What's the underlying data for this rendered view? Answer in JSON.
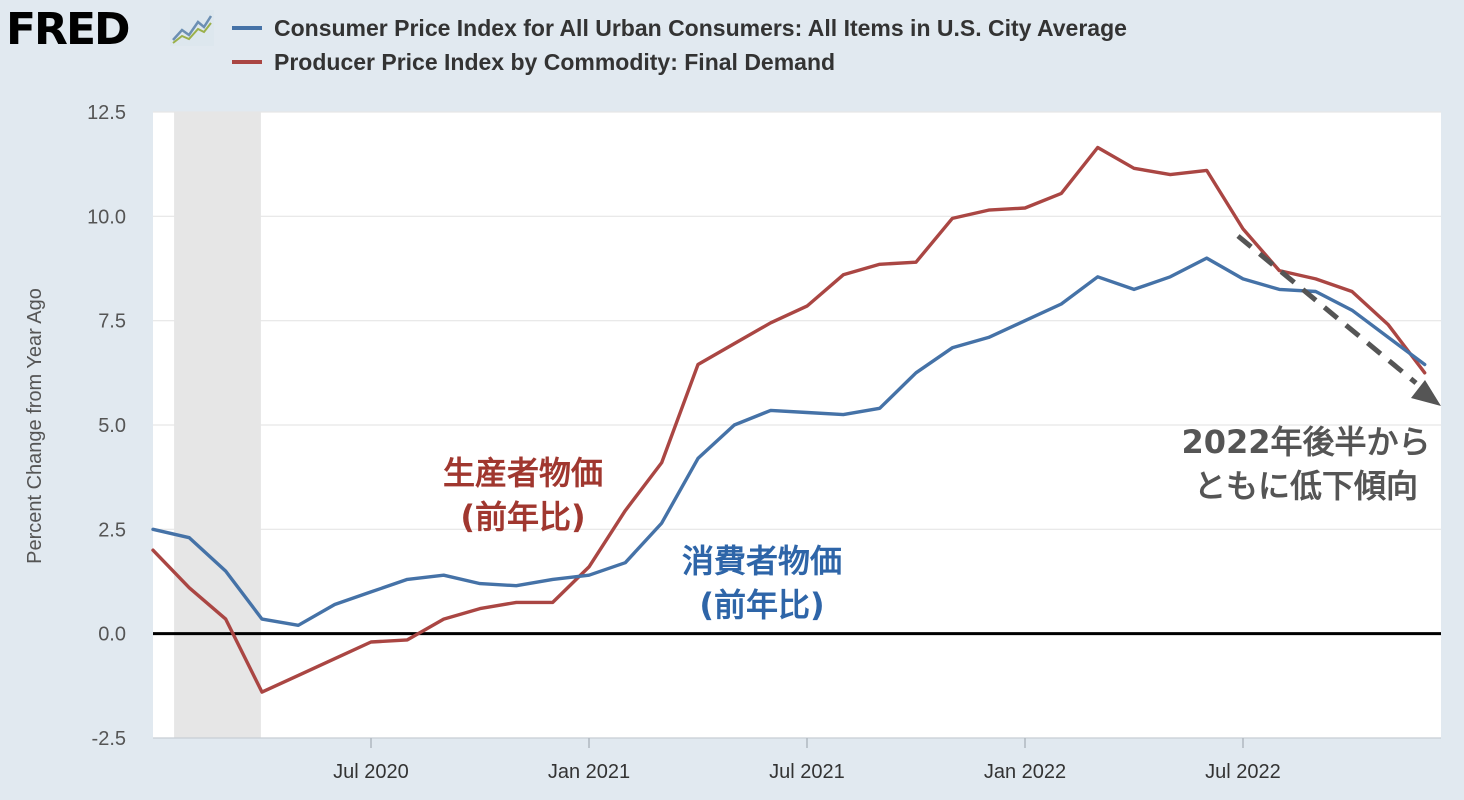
{
  "header": {
    "logo_text": "FRED",
    "logo_icon": "line-chart-icon"
  },
  "chart_data": {
    "type": "line",
    "title": "",
    "xlabel": "",
    "ylabel": "Percent Change from Year Ago",
    "ylim": [
      -2.5,
      12.5
    ],
    "yticks": [
      "12.5",
      "10.0",
      "7.5",
      "5.0",
      "2.5",
      "0.0",
      "-2.5"
    ],
    "xticks": [
      "Jul 2020",
      "Jan 2021",
      "Jul 2021",
      "Jan 2022",
      "Jul 2022"
    ],
    "x": [
      "2020-01",
      "2020-02",
      "2020-03",
      "2020-04",
      "2020-05",
      "2020-06",
      "2020-07",
      "2020-08",
      "2020-09",
      "2020-10",
      "2020-11",
      "2020-12",
      "2021-01",
      "2021-02",
      "2021-03",
      "2021-04",
      "2021-05",
      "2021-06",
      "2021-07",
      "2021-08",
      "2021-09",
      "2021-10",
      "2021-11",
      "2021-12",
      "2022-01",
      "2022-02",
      "2022-03",
      "2022-04",
      "2022-05",
      "2022-06",
      "2022-07",
      "2022-08",
      "2022-09",
      "2022-10",
      "2022-11",
      "2022-12"
    ],
    "recession_shading": [
      "2020-02",
      "2020-04"
    ],
    "grid": true,
    "legend_position": "top",
    "series": [
      {
        "name": "Consumer Price Index for All Urban Consumers: All Items in U.S. City Average",
        "color": "#4572a7",
        "values": [
          2.5,
          2.3,
          1.5,
          0.35,
          0.2,
          0.7,
          1.0,
          1.3,
          1.4,
          1.2,
          1.15,
          1.3,
          1.4,
          1.7,
          2.65,
          4.2,
          5.0,
          5.35,
          5.3,
          5.25,
          5.4,
          6.25,
          6.85,
          7.1,
          7.5,
          7.9,
          8.55,
          8.25,
          8.55,
          9.0,
          8.5,
          8.25,
          8.2,
          7.75,
          7.1,
          6.45
        ]
      },
      {
        "name": "Producer Price Index by Commodity: Final Demand",
        "color": "#aa4643",
        "values": [
          2.0,
          1.1,
          0.35,
          -1.4,
          -1.0,
          -0.6,
          -0.2,
          -0.15,
          0.35,
          0.6,
          0.75,
          0.75,
          1.6,
          2.95,
          4.1,
          6.45,
          6.95,
          7.45,
          7.85,
          8.6,
          8.85,
          8.9,
          9.95,
          10.15,
          10.2,
          10.55,
          11.65,
          11.15,
          11.0,
          11.1,
          9.7,
          8.7,
          8.5,
          8.2,
          7.4,
          6.25
        ]
      }
    ],
    "annotations": [
      {
        "line1": "生産者物価",
        "line2": "(前年比)",
        "color": "#a0372f"
      },
      {
        "line1": "消費者物価",
        "line2": "(前年比)",
        "color": "#2e65a8"
      },
      {
        "line1": "2022年後半から",
        "line2": "ともに低下傾向",
        "color": "#555555"
      }
    ]
  }
}
